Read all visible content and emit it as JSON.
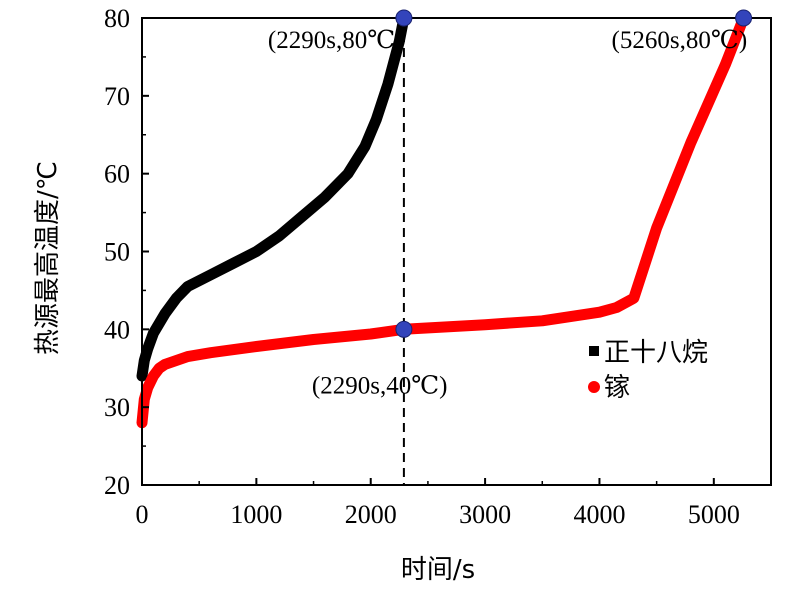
{
  "chart_data": {
    "type": "line",
    "xlabel": "时间/s",
    "ylabel": "热源最高温度/℃",
    "xlim": [
      0,
      5500
    ],
    "ylim": [
      20,
      80
    ],
    "x_ticks": [
      "0",
      "1000",
      "2000",
      "3000",
      "4000",
      "5000"
    ],
    "y_ticks": [
      "20",
      "30",
      "40",
      "50",
      "60",
      "70",
      "80"
    ],
    "grid": false,
    "legend_position": "right",
    "series": [
      {
        "name": "正十八烷",
        "color": "#000000",
        "x": [
          0,
          20,
          50,
          100,
          200,
          300,
          400,
          600,
          800,
          1000,
          1200,
          1400,
          1600,
          1800,
          1950,
          2050,
          2150,
          2250,
          2290
        ],
        "y": [
          34,
          36,
          37.5,
          39.5,
          42,
          44,
          45.5,
          47,
          48.5,
          50,
          52,
          54.5,
          57,
          60,
          63.5,
          67,
          71.5,
          77,
          80
        ]
      },
      {
        "name": "镓",
        "color": "#ff0000",
        "x": [
          0,
          20,
          50,
          100,
          150,
          200,
          400,
          600,
          1000,
          1500,
          2000,
          2290,
          3000,
          3500,
          4000,
          4150,
          4300,
          4500,
          4800,
          5100,
          5260
        ],
        "y": [
          28,
          31,
          32.5,
          34,
          35,
          35.5,
          36.5,
          37,
          37.8,
          38.7,
          39.4,
          40,
          40.6,
          41.1,
          42.2,
          42.8,
          44,
          53,
          64,
          74,
          80
        ]
      }
    ],
    "annotations": [
      {
        "text": "(2290s,80℃)",
        "x": 2290,
        "y": 80
      },
      {
        "text": "(5260s,80℃)",
        "x": 5260,
        "y": 80
      },
      {
        "text": "(2290s,40℃)",
        "x": 2290,
        "y": 40
      }
    ],
    "marker_color": "#3344bb",
    "vline_x": 2290
  }
}
